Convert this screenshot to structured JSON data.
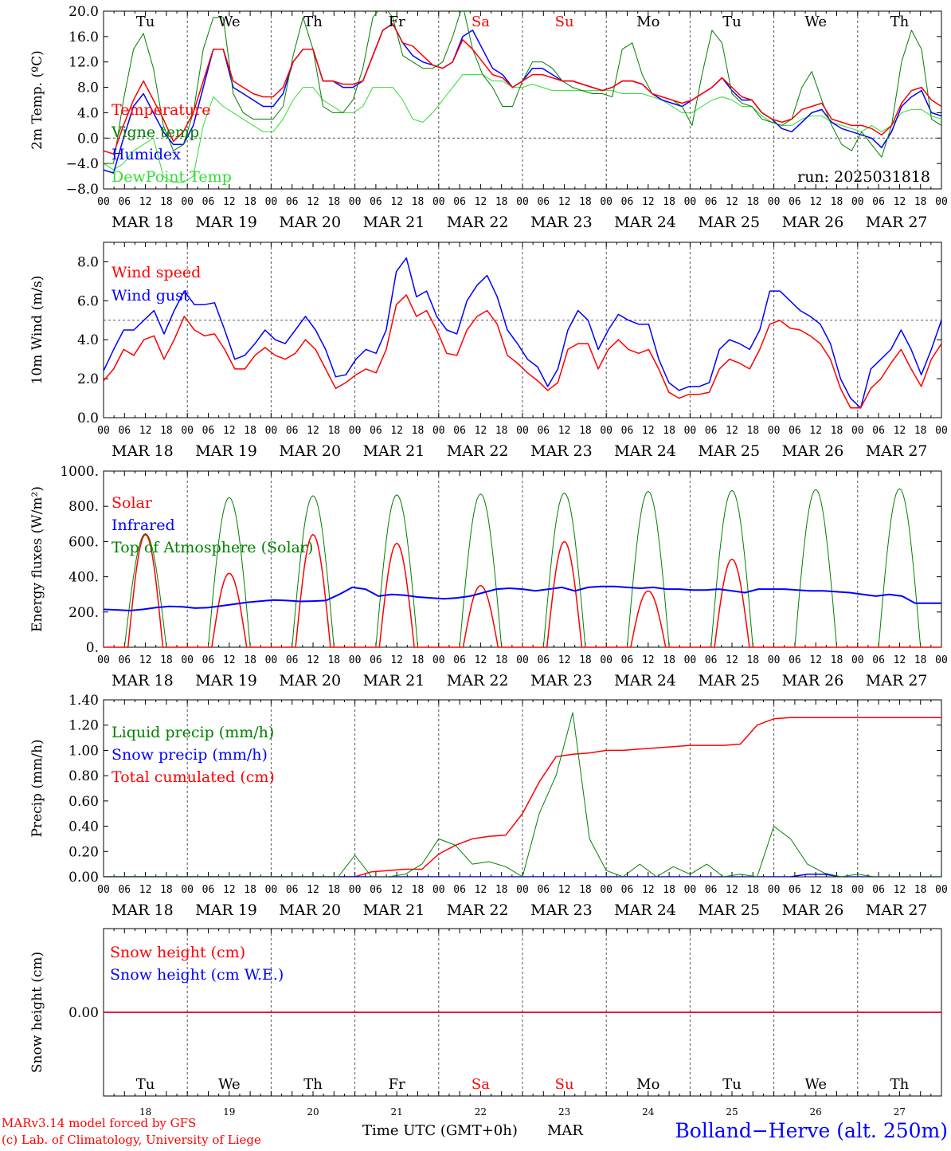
{
  "colors": {
    "red": "#ff0000",
    "green": "#008000",
    "blue": "#0000ff",
    "lightgreen": "#33dd33",
    "frame": "#000000",
    "dash": "#555555"
  },
  "x_axis": {
    "hour_ticks": [
      "00",
      "06",
      "12",
      "18"
    ],
    "final_hour": "00",
    "dates": [
      "MAR 18",
      "MAR 19",
      "MAR 20",
      "MAR 21",
      "MAR 22",
      "MAR 23",
      "MAR 24",
      "MAR 25",
      "MAR 26",
      "MAR 27"
    ],
    "weekdays": [
      "Tu",
      "We",
      "Th",
      "Fr",
      "Sa",
      "Su",
      "Mo",
      "Tu",
      "We",
      "Th"
    ],
    "weekend_index": [
      4,
      5
    ],
    "day_numbers": [
      "18",
      "19",
      "20",
      "21",
      "22",
      "23",
      "24",
      "25",
      "26",
      "27"
    ],
    "month": "MAR",
    "time_label": "Time UTC (GMT+0h)"
  },
  "footer": {
    "credit1": "MARv3.14 model forced by GFS",
    "credit2": "(c) Lab. of Climatology, University of Liege",
    "station": "Bolland−Herve (alt. 250m)"
  },
  "chart_data": [
    {
      "type": "line",
      "ylabel": "2m Temp. (ºC)",
      "ylim": [
        -8,
        20
      ],
      "yticks": [
        "20.0",
        "16.0",
        "12.0",
        "8.0",
        "4.0",
        "0.0",
        "−4.0",
        "−8.0"
      ],
      "ref_line": 0,
      "run_label": "run: 2025031818",
      "series": [
        {
          "name": "Temperature",
          "color": "red",
          "values": [
            -2,
            -2.5,
            2,
            6,
            9,
            6,
            3,
            -0.5,
            1,
            4,
            9,
            14,
            14,
            9,
            8,
            7,
            6.5,
            6.5,
            8,
            12,
            14,
            14,
            9,
            9,
            8.5,
            8.5,
            9,
            13,
            17,
            18,
            15,
            14.5,
            13,
            11.5,
            11,
            12,
            15.5,
            14,
            12,
            10,
            9.5,
            8,
            9,
            10,
            10,
            9.5,
            9,
            9,
            8.5,
            8,
            7.5,
            8,
            9,
            9,
            8.5,
            7,
            6.5,
            6,
            5.5,
            6,
            7,
            8,
            9.5,
            8,
            6.5,
            6,
            4,
            3,
            2.5,
            3,
            4.5,
            5,
            5.5,
            3,
            2.5,
            2,
            2,
            1.5,
            0.5,
            2,
            5.5,
            7.5,
            8,
            6,
            5
          ]
        },
        {
          "name": "Vigne temp",
          "color": "green",
          "values": [
            -4,
            -4,
            6,
            14,
            16.5,
            11,
            2,
            -2,
            -1,
            4,
            14,
            19,
            19,
            7,
            4,
            3,
            3,
            3,
            5,
            13,
            19,
            14,
            5,
            4,
            4,
            6,
            11,
            19,
            21,
            19,
            13,
            12,
            11,
            11,
            12,
            16,
            21,
            14,
            10,
            8,
            5,
            5,
            9,
            12,
            12,
            11,
            9,
            8,
            7.5,
            7,
            7,
            6.5,
            14,
            15,
            10,
            7,
            6.5,
            6,
            5,
            2,
            10,
            17,
            15,
            7,
            5.5,
            5,
            3,
            2.5,
            2,
            3,
            8,
            10.5,
            6,
            2,
            -1,
            -2,
            1,
            -1,
            -3,
            2,
            12,
            17,
            14,
            3,
            2
          ]
        },
        {
          "name": "Humidex",
          "color": "blue",
          "values": [
            -5,
            -5.5,
            0,
            5,
            7,
            4,
            1,
            -1,
            -1,
            2,
            8,
            14,
            14,
            8,
            7,
            6,
            5,
            5,
            7,
            12,
            14,
            14,
            9,
            9,
            8,
            8,
            9,
            13,
            17,
            18,
            15,
            13,
            12,
            11.5,
            11,
            12,
            16,
            17,
            14,
            11,
            10,
            8,
            9,
            11,
            11,
            10,
            9,
            9,
            8.5,
            8,
            7.5,
            8,
            9,
            9,
            8.5,
            7,
            6,
            5.5,
            5,
            6,
            7,
            8,
            9.5,
            7.5,
            6,
            6,
            4,
            3,
            1.5,
            1,
            2.5,
            4,
            4.5,
            2.5,
            1.5,
            1,
            0.5,
            0,
            -1.5,
            1,
            5,
            6.5,
            7.5,
            4,
            3.5
          ]
        },
        {
          "name": "DewPoint Temp",
          "color": "lightgreen",
          "values": [
            -4,
            -5,
            -4,
            -2,
            -1,
            0,
            -6,
            -7,
            -7,
            -6,
            2,
            6.5,
            5,
            4,
            3,
            2,
            1,
            1,
            3,
            6,
            8,
            8,
            6,
            5,
            4,
            4,
            5,
            8,
            8,
            8,
            6,
            3,
            2.5,
            4,
            6,
            8,
            10,
            10,
            10,
            9,
            9,
            8,
            8,
            8.5,
            8,
            7.5,
            7.5,
            7.5,
            7.5,
            7.5,
            7.5,
            7.5,
            7,
            7,
            7,
            6.5,
            6,
            5,
            4,
            4,
            5,
            6,
            6.5,
            6,
            5,
            5,
            3.5,
            2.5,
            2,
            2,
            3,
            3.5,
            3.5,
            2.5,
            2,
            1.5,
            1,
            2,
            1,
            2,
            4,
            4.5,
            4.5,
            3.5,
            3
          ]
        }
      ]
    },
    {
      "type": "line",
      "ylabel": "10m Wind (m/s)",
      "ylim": [
        0,
        9
      ],
      "yticks": [
        "8.0",
        "6.0",
        "4.0",
        "2.0",
        "0.0"
      ],
      "ref_line": 5,
      "series": [
        {
          "name": "Wind speed",
          "color": "red",
          "values": [
            1.9,
            2.5,
            3.5,
            3.2,
            4.0,
            4.2,
            3.0,
            4.0,
            5.2,
            4.5,
            4.2,
            4.3,
            3.5,
            2.5,
            2.5,
            3.2,
            3.6,
            3.2,
            3.0,
            3.3,
            4.0,
            3.5,
            2.5,
            1.5,
            1.8,
            2.2,
            2.5,
            2.3,
            3.5,
            5.8,
            6.3,
            5.2,
            5.5,
            4.5,
            3.3,
            3.2,
            4.5,
            5.2,
            5.5,
            4.8,
            3.2,
            2.8,
            2.3,
            1.9,
            1.4,
            1.8,
            3.5,
            3.8,
            3.8,
            2.5,
            3.5,
            4.0,
            3.5,
            3.3,
            3.5,
            2.5,
            1.3,
            1.0,
            1.2,
            1.2,
            1.3,
            2.5,
            3.0,
            2.8,
            2.5,
            3.5,
            4.8,
            5.0,
            4.6,
            4.5,
            4.2,
            3.8,
            3.0,
            1.5,
            0.5,
            0.5,
            1.5,
            2.0,
            2.8,
            3.5,
            2.5,
            1.6,
            3.0,
            3.8
          ]
        },
        {
          "name": "Wind gust",
          "color": "blue",
          "values": [
            2.4,
            3.5,
            4.5,
            4.5,
            5.0,
            5.5,
            4.3,
            5.5,
            6.5,
            5.8,
            5.8,
            5.9,
            4.5,
            3.0,
            3.2,
            3.8,
            4.5,
            4.0,
            3.8,
            4.5,
            5.2,
            4.5,
            3.5,
            2.1,
            2.2,
            3.0,
            3.5,
            3.3,
            4.5,
            7.5,
            8.2,
            6.2,
            6.5,
            5.2,
            4.5,
            4.3,
            6.0,
            6.8,
            7.3,
            6.2,
            4.5,
            3.8,
            3.0,
            2.6,
            1.6,
            2.5,
            4.5,
            5.5,
            5.0,
            3.5,
            4.5,
            5.3,
            5.0,
            4.8,
            4.8,
            3.0,
            1.8,
            1.4,
            1.6,
            1.6,
            1.8,
            3.5,
            4.0,
            3.8,
            3.5,
            4.5,
            6.5,
            6.5,
            6.0,
            5.5,
            5.2,
            4.8,
            3.8,
            2.0,
            1.0,
            0.5,
            2.5,
            3.0,
            3.5,
            4.5,
            3.5,
            2.2,
            3.5,
            5.0
          ]
        }
      ]
    },
    {
      "type": "line",
      "ylabel": "Energy fluxes (W/m²)",
      "ylim": [
        0,
        1000
      ],
      "yticks": [
        "1000.",
        "800.",
        "600.",
        "400.",
        "200.",
        "0."
      ],
      "series": [
        {
          "name": "Solar",
          "color": "red",
          "x": [
            0,
            6,
            12,
            18,
            24,
            30,
            36,
            42,
            48,
            54,
            60,
            66,
            72,
            78,
            84,
            90,
            96,
            102,
            108,
            114,
            120,
            126,
            132,
            138,
            144,
            150,
            156,
            162,
            168,
            174,
            180,
            186,
            192,
            198,
            204,
            210,
            216,
            222,
            228,
            234,
            240
          ],
          "values": [
            0,
            640,
            0,
            0,
            630,
            0,
            0,
            420,
            0,
            0,
            640,
            0,
            0,
            590,
            0,
            0,
            80,
            0,
            0,
            350,
            0,
            0,
            600,
            0,
            0,
            320,
            0,
            0,
            500,
            0,
            0,
            0,
            0,
            0,
            0,
            0,
            0,
            0,
            0,
            0,
            0
          ]
        },
        {
          "name": "Infrared",
          "color": "blue",
          "values": [
            215,
            212,
            208,
            215,
            225,
            232,
            230,
            222,
            225,
            235,
            245,
            255,
            262,
            268,
            265,
            260,
            262,
            265,
            300,
            340,
            330,
            290,
            300,
            295,
            285,
            280,
            275,
            280,
            290,
            310,
            330,
            335,
            330,
            320,
            330,
            340,
            320,
            340,
            345,
            345,
            340,
            335,
            340,
            330,
            330,
            325,
            325,
            330,
            320,
            310,
            330,
            330,
            330,
            325,
            320,
            320,
            315,
            310,
            300,
            290,
            300,
            290,
            250,
            250,
            250
          ]
        },
        {
          "name": "Top of Atmosphere (Solar)",
          "color": "green",
          "peaks": [
            645,
            850,
            860,
            865,
            870,
            875,
            885,
            890,
            895,
            900
          ]
        }
      ]
    },
    {
      "type": "line",
      "ylabel": "Precip (mm/h)",
      "ylim": [
        0,
        1.4
      ],
      "yticks": [
        "1.40",
        "1.20",
        "1.00",
        "0.80",
        "0.60",
        "0.40",
        "0.20",
        "0.00"
      ],
      "series": [
        {
          "name": "Liquid precip (mm/h)",
          "color": "green",
          "values": [
            0,
            0,
            0,
            0,
            0,
            0,
            0,
            0,
            0,
            0,
            0,
            0,
            0,
            0,
            0,
            0.17,
            0,
            0,
            0.02,
            0.1,
            0.3,
            0.25,
            0.1,
            0.12,
            0.08,
            0,
            0.5,
            0.8,
            1.3,
            0.3,
            0.05,
            0,
            0.1,
            0,
            0.08,
            0.02,
            0.1,
            0,
            0.02,
            0,
            0.4,
            0.3,
            0.1,
            0.03,
            0,
            0.02,
            0,
            0,
            0,
            0,
            0
          ]
        },
        {
          "name": "Snow precip (mm/h)",
          "color": "blue",
          "values": [
            0,
            0,
            0,
            0,
            0,
            0,
            0,
            0,
            0,
            0,
            0,
            0,
            0,
            0,
            0,
            0,
            0,
            0,
            0,
            0,
            0,
            0,
            0,
            0,
            0,
            0,
            0,
            0,
            0,
            0,
            0,
            0,
            0,
            0,
            0,
            0,
            0,
            0,
            0,
            0,
            0,
            0,
            0.02,
            0.02,
            0,
            0,
            0,
            0,
            0,
            0,
            0
          ]
        },
        {
          "name": "Total cumulated (cm)",
          "color": "red",
          "values": [
            0,
            0,
            0,
            0,
            0,
            0,
            0,
            0,
            0,
            0,
            0,
            0,
            0,
            0,
            0,
            0,
            0.04,
            0.05,
            0.06,
            0.06,
            0.18,
            0.25,
            0.3,
            0.32,
            0.33,
            0.5,
            0.75,
            0.95,
            0.97,
            0.98,
            1.0,
            1.0,
            1.01,
            1.02,
            1.03,
            1.04,
            1.04,
            1.04,
            1.05,
            1.2,
            1.25,
            1.26,
            1.26,
            1.26,
            1.26,
            1.26,
            1.26,
            1.26,
            1.26,
            1.26,
            1.26
          ]
        }
      ]
    },
    {
      "type": "line",
      "ylabel": "Snow height (cm)",
      "ylim": [
        -1,
        1
      ],
      "yticks": [
        "0.00"
      ],
      "series": [
        {
          "name": "Snow height (cm)",
          "color": "red",
          "values": [
            0,
            0
          ]
        },
        {
          "name": "Snow height (cm W.E.)",
          "color": "blue",
          "values": [
            0,
            0
          ]
        }
      ]
    }
  ]
}
